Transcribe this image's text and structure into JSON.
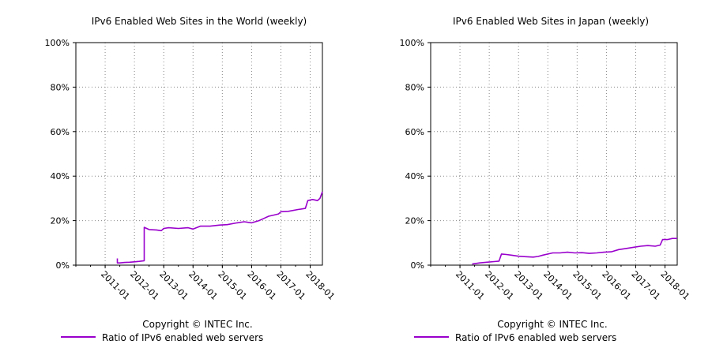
{
  "chart_data": [
    {
      "type": "line",
      "title": "IPv6 Enabled Web Sites in the World (weekly)",
      "ylim": [
        0,
        100
      ],
      "yticks": [
        "0%",
        "20%",
        "40%",
        "60%",
        "80%",
        "100%"
      ],
      "xlim": [
        "2010-01",
        "2018-06"
      ],
      "xticks": [
        "2011-01",
        "2012-01",
        "2013-01",
        "2014-01",
        "2015-01",
        "2016-01",
        "2017-01",
        "2018-01"
      ],
      "grid": true,
      "copyright": "Copyright © INTEC Inc.",
      "legend": {
        "placement": "bottom",
        "label": "Ratio of IPv6 enabled web servers",
        "color": "#9900cc"
      },
      "series": [
        {
          "name": "Ratio of IPv6 enabled web servers",
          "color": "#9900cc",
          "x": [
            "2011-06",
            "2011-06",
            "2011-07",
            "2011-09",
            "2011-11",
            "2012-01",
            "2012-03",
            "2012-05",
            "2012-05",
            "2012-07",
            "2012-10",
            "2012-12",
            "2013-01",
            "2013-03",
            "2013-07",
            "2013-11",
            "2014-01",
            "2014-04",
            "2014-08",
            "2014-12",
            "2015-03",
            "2015-07",
            "2015-10",
            "2016-01",
            "2016-04",
            "2016-06",
            "2016-08",
            "2016-10",
            "2016-12",
            "2017-01",
            "2017-04",
            "2017-08",
            "2017-11",
            "2017-12",
            "2018-02",
            "2018-04",
            "2018-05",
            "2018-06"
          ],
          "y": [
            3.0,
            1.0,
            1.0,
            1.2,
            1.3,
            1.5,
            1.7,
            2.0,
            17.0,
            16.0,
            15.8,
            15.5,
            16.5,
            16.8,
            16.5,
            16.8,
            16.2,
            17.5,
            17.5,
            18.0,
            18.2,
            19.0,
            19.5,
            19.0,
            20.0,
            21.0,
            22.0,
            22.5,
            23.0,
            24.0,
            24.2,
            25.0,
            25.5,
            29.0,
            29.5,
            29.0,
            30.0,
            33.0
          ]
        }
      ]
    },
    {
      "type": "line",
      "title": "IPv6 Enabled Web Sites in Japan (weekly)",
      "ylim": [
        0,
        100
      ],
      "yticks": [
        "0%",
        "20%",
        "40%",
        "60%",
        "80%",
        "100%"
      ],
      "xlim": [
        "2010-01",
        "2018-06"
      ],
      "xticks": [
        "2011-01",
        "2012-01",
        "2013-01",
        "2014-01",
        "2015-01",
        "2016-01",
        "2017-01",
        "2018-01"
      ],
      "grid": true,
      "copyright": "Copyright © INTEC Inc.",
      "legend": {
        "placement": "bottom",
        "label": "Ratio of IPv6 enabled web servers",
        "color": "#9900cc"
      },
      "series": [
        {
          "name": "Ratio of IPv6 enabled web servers",
          "color": "#9900cc",
          "x": [
            "2011-06",
            "2011-09",
            "2011-12",
            "2012-03",
            "2012-05",
            "2012-06",
            "2012-08",
            "2012-10",
            "2013-01",
            "2013-04",
            "2013-07",
            "2013-09",
            "2013-11",
            "2014-01",
            "2014-03",
            "2014-06",
            "2014-09",
            "2014-12",
            "2015-03",
            "2015-06",
            "2015-09",
            "2015-12",
            "2016-03",
            "2016-06",
            "2016-09",
            "2016-12",
            "2017-03",
            "2017-06",
            "2017-09",
            "2017-11",
            "2017-12",
            "2018-02",
            "2018-04",
            "2018-06"
          ],
          "y": [
            0.5,
            1.0,
            1.3,
            1.6,
            1.8,
            5.0,
            4.8,
            4.5,
            4.0,
            3.8,
            3.6,
            3.9,
            4.5,
            5.0,
            5.5,
            5.5,
            5.8,
            5.5,
            5.6,
            5.3,
            5.5,
            5.8,
            6.0,
            7.0,
            7.5,
            8.0,
            8.5,
            8.8,
            8.5,
            9.0,
            11.5,
            11.5,
            12.0,
            12.0
          ]
        }
      ]
    }
  ]
}
